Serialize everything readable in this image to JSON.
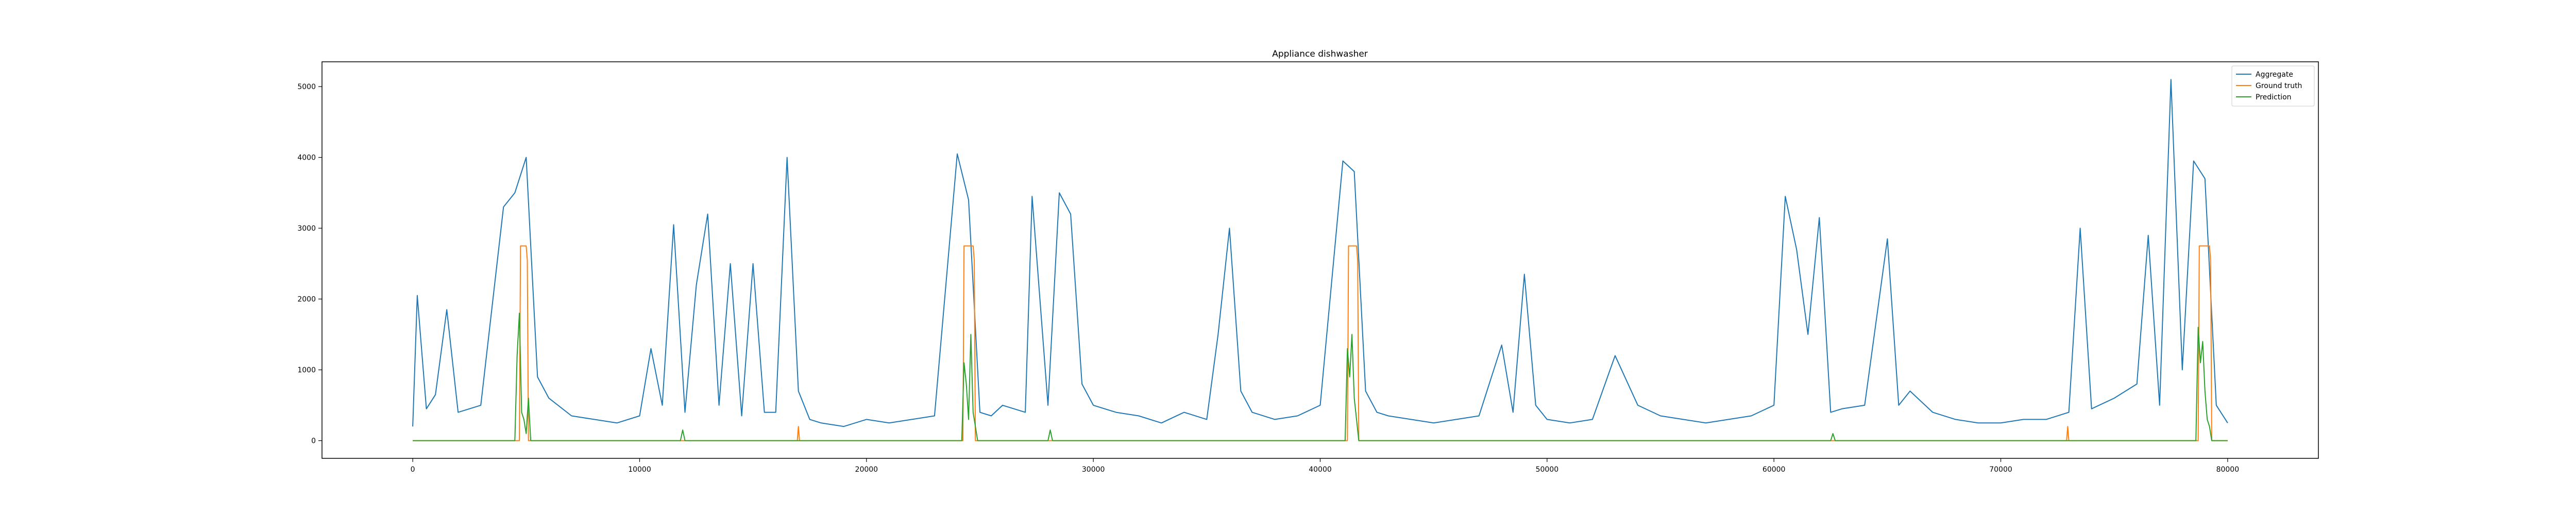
{
  "chart_data": {
    "type": "line",
    "title": "Appliance dishwasher",
    "xlabel": "",
    "ylabel": "",
    "xlim": [
      -4000,
      84000
    ],
    "ylim": [
      -250,
      5350
    ],
    "x_ticks": [
      0,
      10000,
      20000,
      30000,
      40000,
      50000,
      60000,
      70000,
      80000
    ],
    "x_tick_labels": [
      "0",
      "10000",
      "20000",
      "30000",
      "40000",
      "50000",
      "60000",
      "70000",
      "80000"
    ],
    "y_ticks": [
      0,
      1000,
      2000,
      3000,
      4000,
      5000
    ],
    "y_tick_labels": [
      "0",
      "1000",
      "2000",
      "3000",
      "4000",
      "5000"
    ],
    "grid": false,
    "legend_position": "top-right",
    "series": [
      {
        "name": "Aggregate",
        "color": "#1f77b4",
        "x": [
          0,
          200,
          600,
          1000,
          1500,
          2000,
          3000,
          4000,
          4500,
          5000,
          5500,
          6000,
          7000,
          8000,
          9000,
          10000,
          10500,
          11000,
          11500,
          12000,
          12500,
          13000,
          13500,
          14000,
          14500,
          15000,
          15500,
          16000,
          16500,
          17000,
          17500,
          18000,
          19000,
          20000,
          21000,
          22000,
          23000,
          24000,
          24500,
          25000,
          25500,
          26000,
          27000,
          27300,
          28000,
          28500,
          29000,
          29500,
          30000,
          31000,
          32000,
          33000,
          34000,
          35000,
          35500,
          36000,
          36500,
          37000,
          38000,
          39000,
          40000,
          41000,
          41500,
          42000,
          42500,
          43000,
          44000,
          45000,
          46000,
          47000,
          48000,
          48500,
          49000,
          49500,
          50000,
          51000,
          52000,
          53000,
          54000,
          55000,
          56000,
          57000,
          58000,
          59000,
          60000,
          60500,
          61000,
          61500,
          62000,
          62500,
          63000,
          64000,
          65000,
          65500,
          66000,
          67000,
          68000,
          69000,
          70000,
          71000,
          72000,
          73000,
          73500,
          74000,
          75000,
          76000,
          76500,
          77000,
          77500,
          78000,
          78500,
          79000,
          79500,
          80000
        ],
        "values": [
          200,
          2050,
          450,
          650,
          1850,
          400,
          500,
          3300,
          3500,
          4000,
          900,
          600,
          350,
          300,
          250,
          350,
          1300,
          500,
          3050,
          400,
          2200,
          3200,
          500,
          2500,
          350,
          2500,
          400,
          400,
          4000,
          700,
          300,
          250,
          200,
          300,
          250,
          300,
          350,
          4050,
          3400,
          400,
          350,
          500,
          400,
          3450,
          500,
          3500,
          3200,
          800,
          500,
          400,
          350,
          250,
          400,
          300,
          1500,
          3000,
          700,
          400,
          300,
          350,
          500,
          3950,
          3800,
          700,
          400,
          350,
          300,
          250,
          300,
          350,
          1350,
          400,
          2350,
          500,
          300,
          250,
          300,
          1200,
          500,
          350,
          300,
          250,
          300,
          350,
          500,
          3450,
          2700,
          1500,
          3150,
          400,
          450,
          500,
          2850,
          500,
          700,
          400,
          300,
          250,
          250,
          300,
          300,
          400,
          3000,
          450,
          600,
          800,
          2900,
          500,
          5100,
          1000,
          3950,
          3700,
          500,
          250
        ]
      },
      {
        "name": "Ground truth",
        "color": "#ff7f0e",
        "x": [
          0,
          4700,
          4750,
          5000,
          5050,
          5100,
          16950,
          17000,
          17050,
          24250,
          24300,
          24700,
          24750,
          24800,
          41200,
          41250,
          41600,
          41650,
          41700,
          72900,
          72950,
          73000,
          78700,
          78750,
          79200,
          79250,
          79300,
          80000
        ],
        "values": [
          0,
          0,
          2750,
          2750,
          2550,
          0,
          0,
          200,
          0,
          0,
          2750,
          2750,
          2550,
          0,
          0,
          2750,
          2750,
          2550,
          0,
          0,
          200,
          0,
          0,
          2750,
          2750,
          2550,
          0,
          0
        ]
      },
      {
        "name": "Prediction",
        "color": "#2ca02c",
        "x": [
          0,
          4500,
          4600,
          4700,
          4800,
          4900,
          5000,
          5100,
          5200,
          11800,
          11900,
          12000,
          24200,
          24300,
          24400,
          24500,
          24600,
          24700,
          24800,
          24900,
          28000,
          28100,
          28200,
          41100,
          41200,
          41300,
          41400,
          41500,
          41600,
          41700,
          62500,
          62600,
          62700,
          78600,
          78700,
          78800,
          78900,
          79000,
          79100,
          79200,
          79300,
          80000
        ],
        "values": [
          0,
          0,
          1200,
          1800,
          400,
          300,
          100,
          600,
          0,
          0,
          150,
          0,
          0,
          1100,
          800,
          300,
          1500,
          400,
          200,
          0,
          0,
          150,
          0,
          0,
          1300,
          900,
          1500,
          600,
          300,
          0,
          0,
          100,
          0,
          0,
          1600,
          1100,
          1400,
          700,
          300,
          200,
          0,
          0
        ]
      }
    ]
  }
}
